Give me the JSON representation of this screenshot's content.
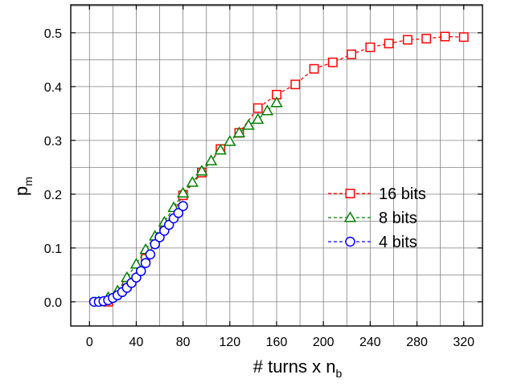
{
  "chart_data": {
    "type": "line",
    "xlabel": "# turns x n",
    "xlabel_subscript": "b",
    "ylabel": "p",
    "ylabel_subscript": "m",
    "xlim": [
      -16,
      336
    ],
    "ylim": [
      -0.045,
      0.552
    ],
    "x_ticks": [
      0,
      40,
      80,
      120,
      160,
      200,
      240,
      280,
      320
    ],
    "x_tick_labels": [
      "0",
      "40",
      "80",
      "120",
      "160",
      "200",
      "240",
      "280",
      "320"
    ],
    "y_ticks": [
      0.0,
      0.1,
      0.2,
      0.3,
      0.4,
      0.5
    ],
    "y_tick_labels": [
      "0.0",
      "0.1",
      "0.2",
      "0.3",
      "0.4",
      "0.5"
    ],
    "grid": true,
    "legend_position": "right-center",
    "series": [
      {
        "name": "16 bits",
        "color": "#ff0000",
        "marker": "square",
        "x": [
          16,
          32,
          48,
          64,
          80,
          96,
          112,
          128,
          144,
          160,
          176,
          192,
          208,
          224,
          240,
          256,
          272,
          288,
          304,
          320
        ],
        "y": [
          0.0,
          0.03,
          0.08,
          0.138,
          0.198,
          0.24,
          0.284,
          0.314,
          0.36,
          0.385,
          0.404,
          0.433,
          0.445,
          0.46,
          0.473,
          0.48,
          0.487,
          0.489,
          0.493,
          0.492
        ]
      },
      {
        "name": "8 bits",
        "color": "#008000",
        "marker": "triangle",
        "x": [
          8,
          16,
          24,
          32,
          40,
          48,
          56,
          64,
          72,
          80,
          88,
          96,
          104,
          112,
          120,
          128,
          136,
          144,
          152,
          160
        ],
        "y": [
          0.0,
          0.008,
          0.02,
          0.045,
          0.07,
          0.097,
          0.122,
          0.148,
          0.175,
          0.202,
          0.222,
          0.243,
          0.262,
          0.282,
          0.298,
          0.314,
          0.328,
          0.339,
          0.355,
          0.37
        ]
      },
      {
        "name": "4 bits",
        "color": "#0000ff",
        "marker": "circle",
        "x": [
          4,
          8,
          12,
          16,
          20,
          24,
          28,
          32,
          36,
          40,
          44,
          48,
          52,
          56,
          60,
          64,
          68,
          72,
          76,
          80
        ],
        "y": [
          0.0,
          0.0,
          0.001,
          0.003,
          0.007,
          0.012,
          0.018,
          0.026,
          0.035,
          0.045,
          0.057,
          0.072,
          0.088,
          0.107,
          0.12,
          0.132,
          0.143,
          0.155,
          0.165,
          0.178
        ]
      }
    ]
  }
}
